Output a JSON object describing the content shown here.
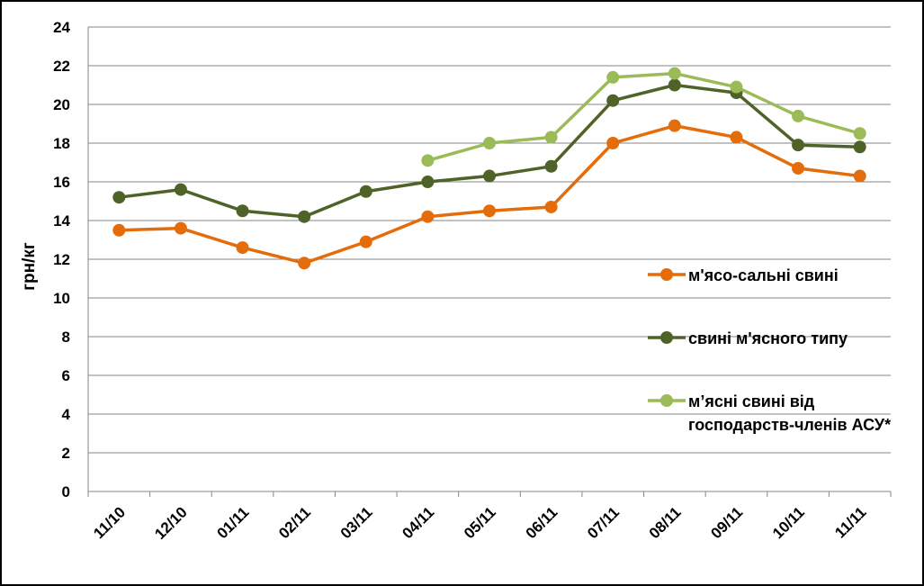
{
  "chart_data": {
    "type": "line",
    "title": "",
    "xlabel": "",
    "ylabel": "грн/кг",
    "ylim": [
      0,
      24
    ],
    "yticks": [
      0,
      2,
      4,
      6,
      8,
      10,
      12,
      14,
      16,
      18,
      20,
      22,
      24
    ],
    "grid": true,
    "legend_position": "right",
    "categories": [
      "11/10",
      "12/10",
      "01/11",
      "02/11",
      "03/11",
      "04/11",
      "05/11",
      "06/11",
      "07/11",
      "08/11",
      "09/11",
      "10/11",
      "11/11"
    ],
    "series": [
      {
        "name": "м'ясо-сальні свині",
        "color": "#E46C0A",
        "values": [
          13.5,
          13.6,
          12.6,
          11.8,
          12.9,
          14.2,
          14.5,
          14.7,
          18.0,
          18.9,
          18.3,
          16.7,
          16.3
        ]
      },
      {
        "name": "свині м'ясного типу",
        "color": "#4F6228",
        "values": [
          15.2,
          15.6,
          14.5,
          14.2,
          15.5,
          16.0,
          16.3,
          16.8,
          20.2,
          21.0,
          20.6,
          17.9,
          17.8
        ]
      },
      {
        "name": "м’ясні свині від господарств-членів АСУ*",
        "name_lines": [
          "м’ясні свині від",
          "господарств-членів АСУ*"
        ],
        "color": "#9BBB59",
        "values": [
          null,
          null,
          null,
          null,
          null,
          17.1,
          18.0,
          18.3,
          21.4,
          21.6,
          20.9,
          19.4,
          18.5
        ]
      }
    ]
  }
}
